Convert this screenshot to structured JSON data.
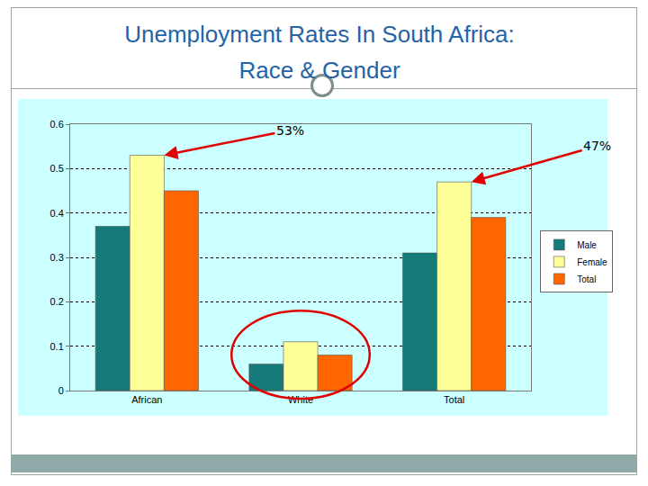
{
  "chart_data": {
    "type": "bar",
    "title": "Unemployment Rates In South Africa: Race & Gender",
    "categories": [
      "African",
      "White",
      "Total"
    ],
    "series": [
      {
        "name": "Male",
        "color": "#167a7a",
        "values": [
          0.37,
          0.06,
          0.31
        ]
      },
      {
        "name": "Female",
        "color": "#ffff99",
        "values": [
          0.53,
          0.11,
          0.47
        ]
      },
      {
        "name": "Total",
        "color": "#ff6600",
        "values": [
          0.45,
          0.08,
          0.39
        ]
      }
    ],
    "ylim": [
      0,
      0.6
    ],
    "yticks": [
      0,
      0.1,
      0.2,
      0.3,
      0.4,
      0.5,
      0.6
    ],
    "grid": true,
    "legend": "right",
    "annotations": [
      {
        "text": "53%",
        "category": "African",
        "series": "Female"
      },
      {
        "text": "47%",
        "category": "Total",
        "series": "Female"
      }
    ]
  }
}
